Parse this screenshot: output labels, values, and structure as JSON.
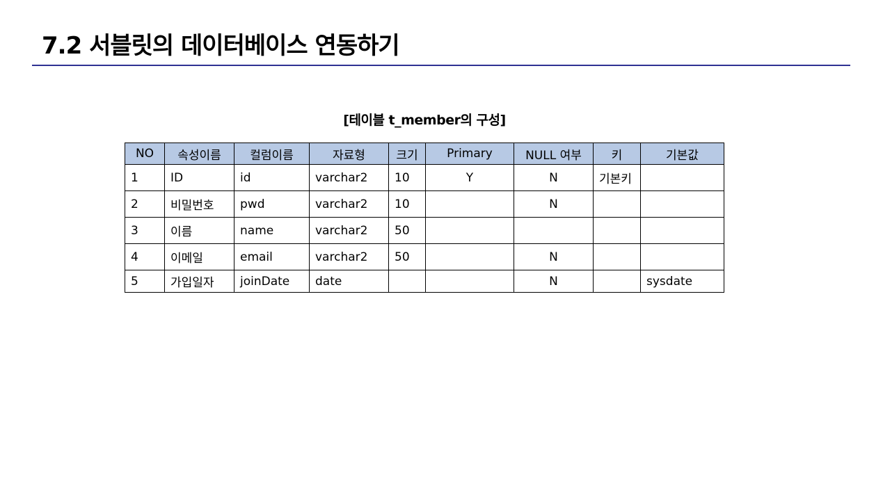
{
  "slide": {
    "title": "7.2 서블릿의 데이터베이스 연동하기",
    "caption": "[테이블 t_member의 구성]"
  },
  "table": {
    "headers": [
      "NO",
      "속성이름",
      "컬럼이름",
      "자료형",
      "크기",
      "Primary",
      "NULL 여부",
      "키",
      "기본값"
    ],
    "rows": [
      [
        "1",
        "ID",
        "id",
        "varchar2",
        "10",
        "Y",
        "N",
        "기본키",
        ""
      ],
      [
        "2",
        "비밀번호",
        "pwd",
        "varchar2",
        "10",
        "",
        "N",
        "",
        ""
      ],
      [
        "3",
        "이름",
        "name",
        "varchar2",
        "50",
        "",
        "",
        "",
        ""
      ],
      [
        "4",
        "이메일",
        "email",
        "varchar2",
        "50",
        "",
        "N",
        "",
        ""
      ],
      [
        "5",
        "가입일자",
        "joinDate",
        "date",
        "",
        "",
        "N",
        "",
        "sysdate"
      ]
    ]
  },
  "colors": {
    "header_fill": "#b7c9e4",
    "title_rule": "#2e3192"
  }
}
